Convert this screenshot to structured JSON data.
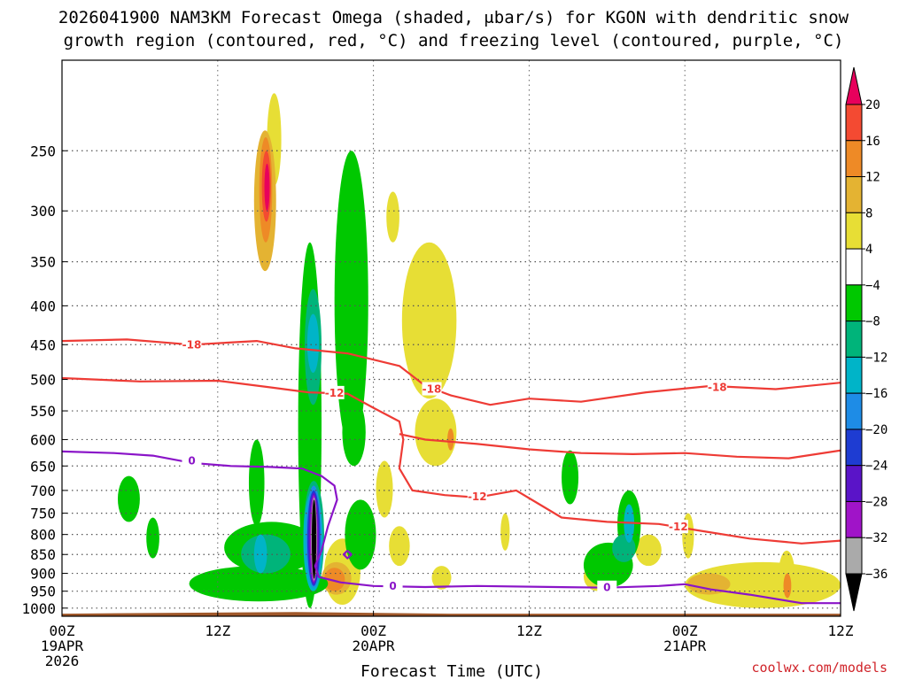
{
  "title_line1": "2026041900 NAM3KM Forecast Omega (shaded, μbar/s) for KGON with dendritic snow",
  "title_line2": "growth region (contoured, red, °C) and freezing level (contoured, purple, °C)",
  "credit": "coolwx.com/models",
  "chart_data": {
    "type": "heatmap",
    "title": "2026041900 NAM3KM Forecast Omega (shaded, μbar/s) for KGON with dendritic snow growth region (contoured, red, °C) and freezing level (contoured, purple, °C)",
    "xlabel": "Forecast Time (UTC)",
    "ylabel": "",
    "x_unit": "hours since 2026041900",
    "xlim": [
      0,
      60
    ],
    "ylim_hpa": [
      1025,
      190
    ],
    "y_scale": "log-pressure (reversed)",
    "grid": true,
    "x_ticks": [
      {
        "h": 0,
        "label": "00Z",
        "sub1": "19APR",
        "sub2": "2026"
      },
      {
        "h": 12,
        "label": "12Z",
        "sub1": "",
        "sub2": ""
      },
      {
        "h": 24,
        "label": "00Z",
        "sub1": "20APR",
        "sub2": ""
      },
      {
        "h": 36,
        "label": "12Z",
        "sub1": "",
        "sub2": ""
      },
      {
        "h": 48,
        "label": "00Z",
        "sub1": "21APR",
        "sub2": ""
      },
      {
        "h": 60,
        "label": "12Z",
        "sub1": "",
        "sub2": ""
      }
    ],
    "y_ticks": [
      250,
      300,
      350,
      400,
      450,
      500,
      550,
      600,
      650,
      700,
      750,
      800,
      850,
      900,
      950,
      1000
    ],
    "colorbar": {
      "labels": [
        20,
        16,
        12,
        8,
        4,
        -4,
        -8,
        -12,
        -16,
        -20,
        -24,
        -28,
        -32,
        -36
      ],
      "colors": [
        "#e8005c",
        "#f44a32",
        "#ee8a26",
        "#e4b332",
        "#e7de35",
        "#ffffff",
        "#00c800",
        "#00b47a",
        "#00b4c8",
        "#1e8ce6",
        "#1e3cd2",
        "#5a14c8",
        "#a014c8",
        "#aaaaaa",
        "#000000"
      ]
    },
    "terrain": {
      "color": "#a0582a",
      "bottom_hpa": 1025,
      "top_hpa": [
        [
          0,
          1017
        ],
        [
          18,
          1012
        ],
        [
          30,
          1017
        ],
        [
          60,
          1017
        ]
      ]
    },
    "omega_regions": [
      {
        "color": "#e7de35",
        "x": [
          15.8,
          16.9
        ],
        "p": [
          210,
          278
        ]
      },
      {
        "color": "#e7de35",
        "x": [
          25.0,
          26.0
        ],
        "p": [
          283,
          330
        ]
      },
      {
        "color": "#e7de35",
        "x": [
          26.2,
          30.4
        ],
        "p": [
          330,
          530
        ]
      },
      {
        "color": "#e7de35",
        "x": [
          27.2,
          30.4
        ],
        "p": [
          530,
          650
        ]
      },
      {
        "color": "#e7de35",
        "x": [
          24.2,
          25.5
        ],
        "p": [
          640,
          760
        ]
      },
      {
        "color": "#e7de35",
        "x": [
          20.2,
          23.0
        ],
        "p": [
          810,
          990
        ]
      },
      {
        "color": "#e7de35",
        "x": [
          25.2,
          26.8
        ],
        "p": [
          780,
          880
        ]
      },
      {
        "color": "#e7de35",
        "x": [
          28.5,
          30.0
        ],
        "p": [
          880,
          945
        ]
      },
      {
        "color": "#e7de35",
        "x": [
          33.8,
          34.5
        ],
        "p": [
          750,
          840
        ]
      },
      {
        "color": "#e7de35",
        "x": [
          40.2,
          42.5
        ],
        "p": [
          870,
          950
        ]
      },
      {
        "color": "#e7de35",
        "x": [
          44.2,
          46.2
        ],
        "p": [
          800,
          880
        ]
      },
      {
        "color": "#e7de35",
        "x": [
          47.8,
          48.7
        ],
        "p": [
          750,
          860
        ]
      },
      {
        "color": "#e7de35",
        "x": [
          48.0,
          60.0
        ],
        "p": [
          870,
          1000
        ]
      },
      {
        "color": "#e7de35",
        "x": [
          55.2,
          56.5
        ],
        "p": [
          840,
          990
        ]
      },
      {
        "color": "#e4b332",
        "x": [
          14.8,
          16.5
        ],
        "p": [
          235,
          360
        ]
      },
      {
        "color": "#e4b332",
        "x": [
          48.2,
          51.5
        ],
        "p": [
          900,
          960
        ]
      },
      {
        "color": "#e4b332",
        "x": [
          20.0,
          22.3
        ],
        "p": [
          870,
          960
        ]
      },
      {
        "color": "#ee8a26",
        "x": [
          15.2,
          16.2
        ],
        "p": [
          240,
          330
        ]
      },
      {
        "color": "#ee8a26",
        "x": [
          20.2,
          21.8
        ],
        "p": [
          885,
          950
        ]
      },
      {
        "color": "#ee8a26",
        "x": [
          55.6,
          56.2
        ],
        "p": [
          900,
          970
        ]
      },
      {
        "color": "#ee8a26",
        "x": [
          29.7,
          30.2
        ],
        "p": [
          580,
          620
        ]
      },
      {
        "color": "#f44a32",
        "x": [
          15.4,
          16.1
        ],
        "p": [
          250,
          310
        ]
      },
      {
        "color": "#e8005c",
        "x": [
          15.6,
          16.0
        ],
        "p": [
          260,
          300
        ]
      },
      {
        "color": "#00c800",
        "x": [
          21.0,
          23.6
        ],
        "p": [
          250,
          620
        ]
      },
      {
        "color": "#00c800",
        "x": [
          18.2,
          20.0
        ],
        "p": [
          330,
          1000
        ]
      },
      {
        "color": "#00c800",
        "x": [
          9.8,
          20.5
        ],
        "p": [
          880,
          980
        ]
      },
      {
        "color": "#00c800",
        "x": [
          12.5,
          19.8
        ],
        "p": [
          770,
          900
        ]
      },
      {
        "color": "#00c800",
        "x": [
          14.4,
          15.6
        ],
        "p": [
          600,
          780
        ]
      },
      {
        "color": "#00c800",
        "x": [
          4.3,
          6.0
        ],
        "p": [
          670,
          770
        ]
      },
      {
        "color": "#00c800",
        "x": [
          6.5,
          7.5
        ],
        "p": [
          760,
          860
        ]
      },
      {
        "color": "#00c800",
        "x": [
          21.6,
          23.4
        ],
        "p": [
          530,
          650
        ]
      },
      {
        "color": "#00c800",
        "x": [
          21.8,
          24.2
        ],
        "p": [
          720,
          890
        ]
      },
      {
        "color": "#00c800",
        "x": [
          38.5,
          39.8
        ],
        "p": [
          620,
          730
        ]
      },
      {
        "color": "#00c800",
        "x": [
          40.2,
          44.0
        ],
        "p": [
          820,
          940
        ]
      },
      {
        "color": "#00c800",
        "x": [
          42.8,
          44.6
        ],
        "p": [
          700,
          860
        ]
      },
      {
        "color": "#00b47a",
        "x": [
          18.7,
          20.0
        ],
        "p": [
          380,
          540
        ]
      },
      {
        "color": "#00b47a",
        "x": [
          13.8,
          17.6
        ],
        "p": [
          800,
          900
        ]
      },
      {
        "color": "#00b47a",
        "x": [
          42.4,
          44.2
        ],
        "p": [
          800,
          870
        ]
      },
      {
        "color": "#00b47a",
        "x": [
          18.6,
          20.2
        ],
        "p": [
          680,
          950
        ]
      },
      {
        "color": "#00b4c8",
        "x": [
          18.9,
          19.8
        ],
        "p": [
          410,
          490
        ]
      },
      {
        "color": "#00b4c8",
        "x": [
          18.6,
          20.1
        ],
        "p": [
          700,
          950
        ]
      },
      {
        "color": "#00b4c8",
        "x": [
          14.8,
          15.8
        ],
        "p": [
          800,
          900
        ]
      },
      {
        "color": "#00b4c8",
        "x": [
          43.3,
          44.1
        ],
        "p": [
          730,
          820
        ]
      },
      {
        "color": "#1e8ce6",
        "x": [
          18.8,
          20.0
        ],
        "p": [
          690,
          940
        ]
      },
      {
        "color": "#1e3cd2",
        "x": [
          18.9,
          19.9
        ],
        "p": [
          700,
          935
        ]
      },
      {
        "color": "#5a14c8",
        "x": [
          19.0,
          19.8
        ],
        "p": [
          705,
          930
        ]
      },
      {
        "color": "#a014c8",
        "x": [
          19.1,
          19.7
        ],
        "p": [
          710,
          925
        ]
      },
      {
        "color": "#aaaaaa",
        "x": [
          19.2,
          19.65
        ],
        "p": [
          715,
          920
        ]
      },
      {
        "color": "#000000",
        "x": [
          19.25,
          19.6
        ],
        "p": [
          720,
          915
        ]
      }
    ],
    "contours": [
      {
        "name": "-18 upper",
        "value": "-18",
        "color": "#ee3b35",
        "points": [
          [
            0,
            445
          ],
          [
            5,
            443
          ],
          [
            10,
            450
          ],
          [
            15,
            445
          ],
          [
            18,
            455
          ],
          [
            22,
            462
          ],
          [
            26,
            480
          ],
          [
            28,
            510
          ],
          [
            30,
            525
          ],
          [
            33,
            540
          ],
          [
            36,
            530
          ],
          [
            40,
            535
          ],
          [
            45,
            520
          ],
          [
            50,
            510
          ],
          [
            55,
            515
          ],
          [
            60,
            505
          ]
        ],
        "labels": [
          {
            "x": 10,
            "p": 450
          },
          {
            "x": 28.5,
            "p": 515
          },
          {
            "x": 50.5,
            "p": 512
          }
        ]
      },
      {
        "name": "-12 lower",
        "value": "-12",
        "color": "#ee3b35",
        "points": [
          [
            0,
            498
          ],
          [
            6,
            503
          ],
          [
            12,
            502
          ],
          [
            16,
            512
          ],
          [
            19,
            520
          ],
          [
            22,
            522
          ],
          [
            24,
            545
          ],
          [
            26,
            568
          ],
          [
            26.3,
            600
          ],
          [
            26,
            655
          ],
          [
            27,
            700
          ],
          [
            29.5,
            710
          ],
          [
            32,
            715
          ],
          [
            35,
            700
          ],
          [
            36.5,
            725
          ],
          [
            38.5,
            760
          ],
          [
            42,
            770
          ],
          [
            46,
            775
          ],
          [
            49,
            790
          ],
          [
            53,
            810
          ],
          [
            57,
            822
          ],
          [
            60,
            815
          ]
        ],
        "labels": [
          {
            "x": 21,
            "p": 521
          },
          {
            "x": 32,
            "p": 713
          },
          {
            "x": 47.5,
            "p": 782
          }
        ]
      },
      {
        "name": "-18 east",
        "value": "-18",
        "color": "#ee3b35",
        "points": [
          [
            26,
            590
          ],
          [
            28,
            600
          ],
          [
            32,
            608
          ],
          [
            36,
            618
          ],
          [
            40,
            625
          ],
          [
            44,
            627
          ],
          [
            48,
            625
          ],
          [
            52,
            632
          ],
          [
            56,
            635
          ],
          [
            60,
            620
          ]
        ],
        "labels": []
      },
      {
        "name": "freezing level",
        "value": "0",
        "color": "#8a14c8",
        "points": [
          [
            0,
            622
          ],
          [
            4,
            625
          ],
          [
            7,
            630
          ],
          [
            10,
            644
          ],
          [
            13,
            650
          ],
          [
            16,
            652
          ],
          [
            18.5,
            655
          ],
          [
            20,
            670
          ],
          [
            21,
            690
          ],
          [
            21.2,
            720
          ],
          [
            20.5,
            780
          ],
          [
            20,
            840
          ],
          [
            19.5,
            880
          ],
          [
            19.8,
            910
          ],
          [
            21.5,
            925
          ],
          [
            24,
            935
          ],
          [
            28,
            938
          ],
          [
            32,
            935
          ],
          [
            38,
            938
          ],
          [
            42,
            940
          ],
          [
            46,
            935
          ],
          [
            48,
            930
          ],
          [
            50,
            945
          ],
          [
            53,
            960
          ],
          [
            57,
            985
          ],
          [
            60,
            985
          ]
        ],
        "labels": [
          {
            "x": 10,
            "p": 640
          },
          {
            "x": 25.5,
            "p": 935
          },
          {
            "x": 42,
            "p": 940
          }
        ]
      },
      {
        "name": "freezing blob",
        "value": "0",
        "color": "#8a14c8",
        "points": [
          [
            22.0,
            840
          ],
          [
            22.3,
            850
          ],
          [
            22.0,
            860
          ],
          [
            21.7,
            850
          ],
          [
            22.0,
            840
          ]
        ],
        "labels": []
      }
    ]
  }
}
